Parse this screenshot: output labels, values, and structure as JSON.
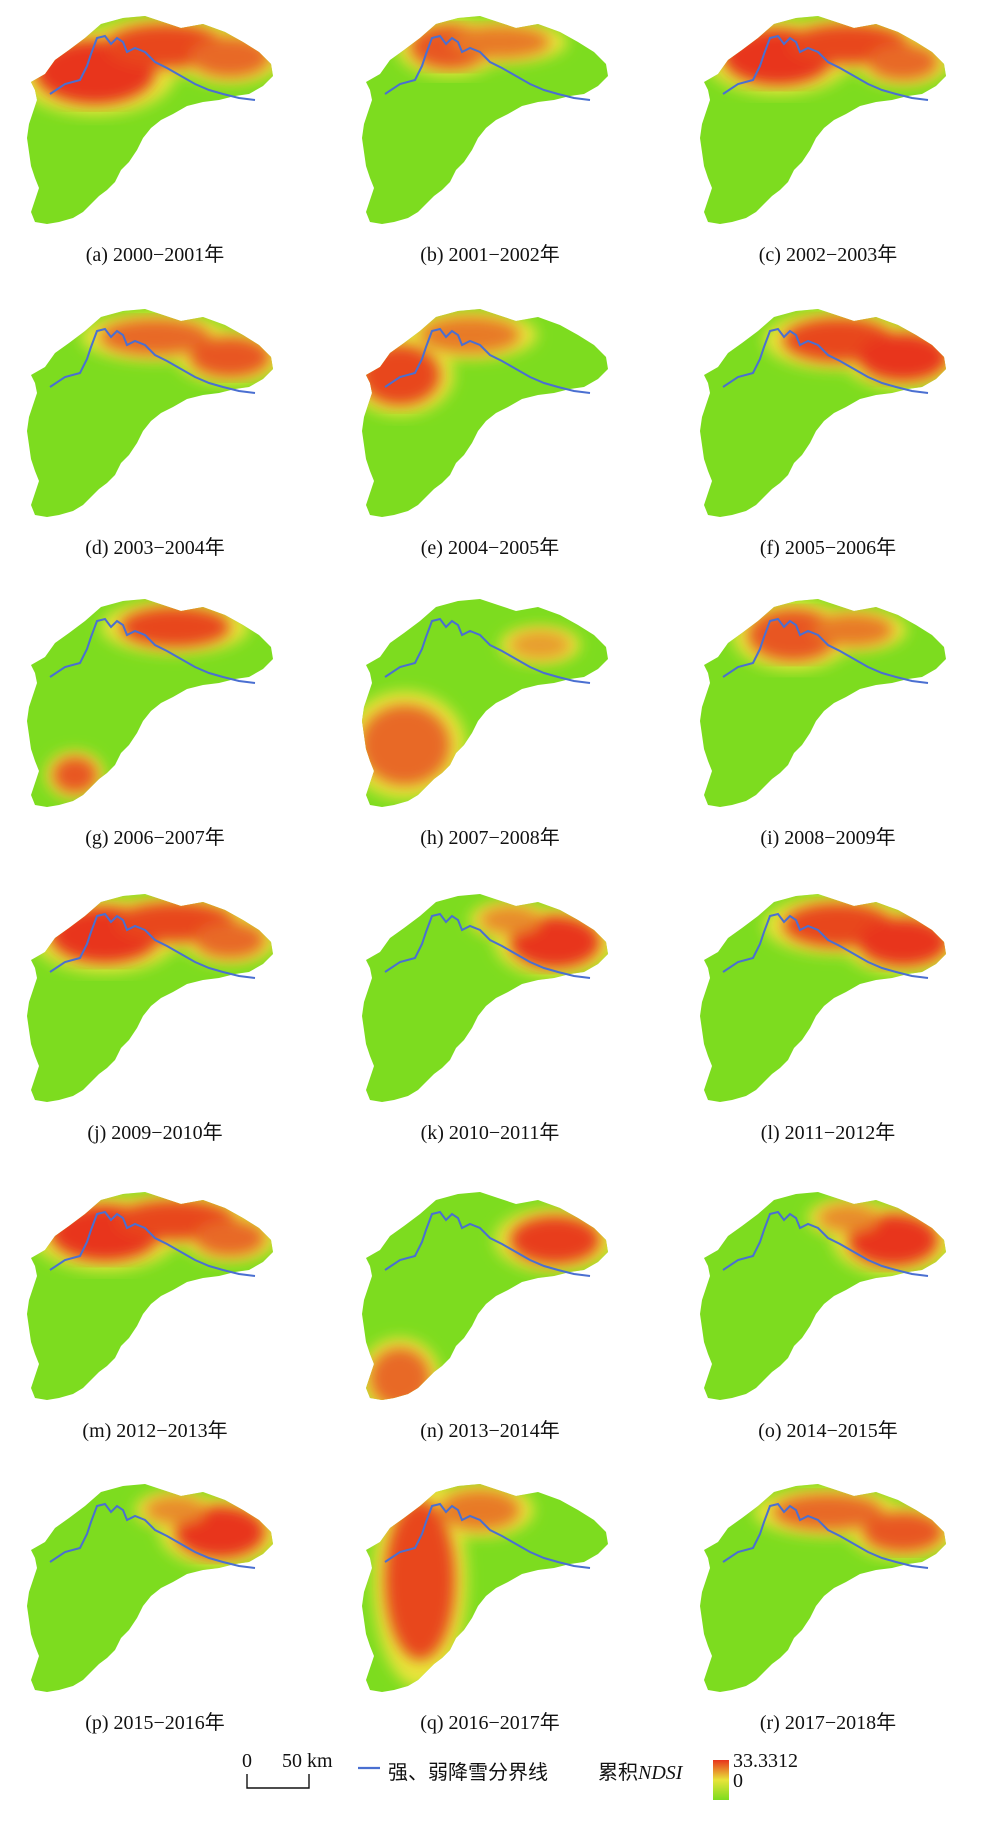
{
  "panels": [
    {
      "id": "a",
      "caption": "(a) 2000−2001年",
      "pattern": "north-west-heavy"
    },
    {
      "id": "b",
      "caption": "(b) 2001−2002年",
      "pattern": "north-central-patchy"
    },
    {
      "id": "c",
      "caption": "(c) 2002−2003年",
      "pattern": "north-heavy"
    },
    {
      "id": "d",
      "caption": "(d) 2003−2004年",
      "pattern": "north-east-moderate"
    },
    {
      "id": "e",
      "caption": "(e) 2004−2005年",
      "pattern": "west-north-moderate"
    },
    {
      "id": "f",
      "caption": "(f) 2005−2006年",
      "pattern": "north-east-heavy"
    },
    {
      "id": "g",
      "caption": "(g) 2006−2007年",
      "pattern": "north-east-moderate-south-patches"
    },
    {
      "id": "h",
      "caption": "(h) 2007−2008年",
      "pattern": "south-west-patchy"
    },
    {
      "id": "i",
      "caption": "(i) 2008−2009年",
      "pattern": "north-central-moderate"
    },
    {
      "id": "j",
      "caption": "(j) 2009−2010年",
      "pattern": "north-heavy"
    },
    {
      "id": "k",
      "caption": "(k) 2010−2011年",
      "pattern": "east-heavy"
    },
    {
      "id": "l",
      "caption": "(l) 2011−2012年",
      "pattern": "north-east-heavy"
    },
    {
      "id": "m",
      "caption": "(m) 2012−2013年",
      "pattern": "north-heavy"
    },
    {
      "id": "n",
      "caption": "(n) 2013−2014年",
      "pattern": "east-and-south-west"
    },
    {
      "id": "o",
      "caption": "(o) 2014−2015年",
      "pattern": "east-heavy"
    },
    {
      "id": "p",
      "caption": "(p) 2015−2016年",
      "pattern": "east-heavy"
    },
    {
      "id": "q",
      "caption": "(q) 2016−2017年",
      "pattern": "west-band"
    },
    {
      "id": "r",
      "caption": "(r) 2017−2018年",
      "pattern": "north-east-moderate"
    }
  ],
  "legend": {
    "scale_zero": "0",
    "scale_distance": "50 km",
    "boundary_label": "强、弱降雪分界线",
    "ndsi_label_prefix": "累积",
    "ndsi_label_italic": "NDSI",
    "ndsi_max": "33.3312",
    "ndsi_min": "0"
  },
  "colors": {
    "low": "#7ddc1f",
    "mid": "#e8e43a",
    "high": "#e8341c",
    "boundary_line": "#4a6fd1",
    "background": "#ffffff"
  }
}
